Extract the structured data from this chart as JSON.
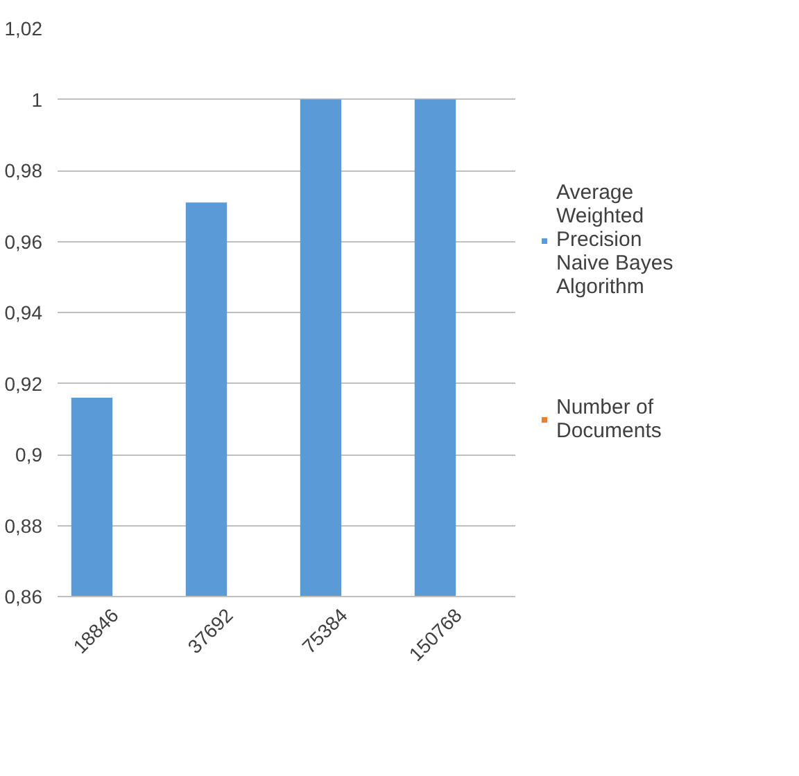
{
  "chart_data": {
    "type": "bar",
    "categories": [
      "18846",
      "37692",
      "75384",
      "150768"
    ],
    "series": [
      {
        "name": "Average Weighted Precision Naive Bayes Algorithm",
        "color": "#5b9bd5",
        "values": [
          0.916,
          0.971,
          1.0,
          1.0
        ]
      },
      {
        "name": "Number of Documents",
        "color": "#ed7d31",
        "values": [
          null,
          null,
          null,
          null
        ]
      }
    ],
    "ylim": [
      0.86,
      1.02
    ],
    "yticks": [
      {
        "value": 0.86,
        "label": "0,86"
      },
      {
        "value": 0.88,
        "label": "0,88"
      },
      {
        "value": 0.9,
        "label": "0,9"
      },
      {
        "value": 0.92,
        "label": "0,92"
      },
      {
        "value": 0.94,
        "label": "0,94"
      },
      {
        "value": 0.96,
        "label": "0,96"
      },
      {
        "value": 0.98,
        "label": "0,98"
      },
      {
        "value": 1.0,
        "label": "1"
      },
      {
        "value": 1.02,
        "label": "1,02"
      }
    ],
    "grid": "y",
    "legend": "right"
  }
}
